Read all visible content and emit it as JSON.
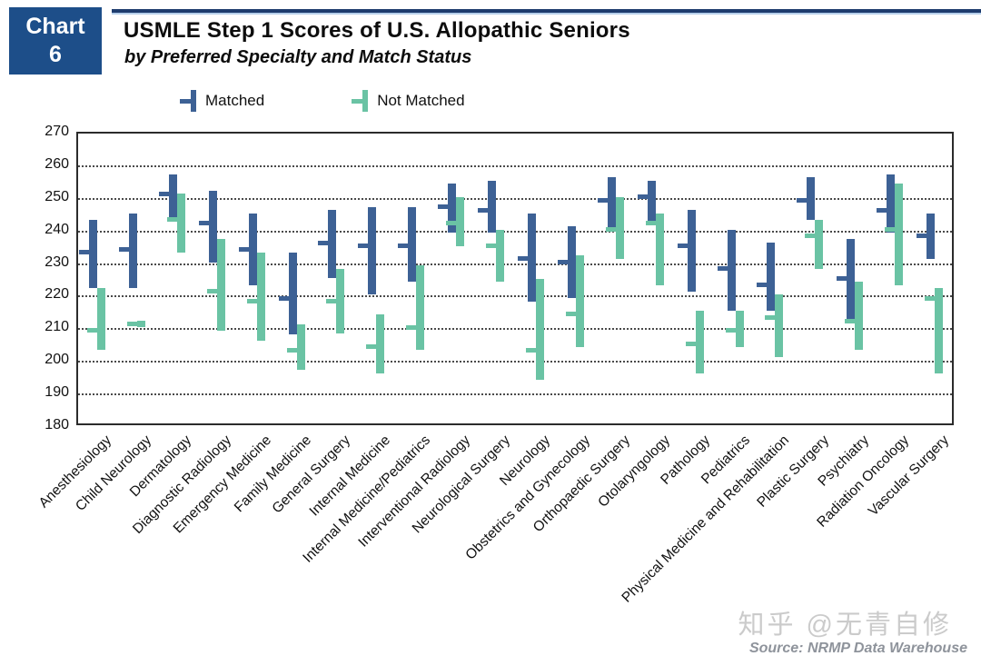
{
  "header": {
    "badge": {
      "line1": "Chart",
      "line2": "6"
    },
    "title": "USMLE Step 1 Scores of U.S. Allopathic Seniors",
    "subtitle": "by Preferred Specialty and Match Status"
  },
  "legend": {
    "items": [
      {
        "label": "Matched",
        "color": "#3D6195"
      },
      {
        "label": "Not Matched",
        "color": "#6AC3A4"
      }
    ]
  },
  "watermark": "知乎 @无青自修",
  "source": "Source: NRMP Data Warehouse",
  "colors": {
    "matched": "#3D6195",
    "not_matched": "#6AC3A4",
    "badge_bg": "#1D4E89",
    "rule_dark": "#1E3C6E",
    "rule_light": "#B5CFEA",
    "gridline": "#4a4a4a",
    "watermark": "#cbcbcb",
    "source_text": "#8E939B"
  },
  "chart_data": {
    "type": "bar",
    "subtype": "floating-range-bars-with-mean-tick",
    "title": "USMLE Step 1 Scores of U.S. Allopathic Seniors",
    "subtitle": "by Preferred Specialty and Match Status",
    "xlabel": "",
    "ylabel": "",
    "ylim": [
      180,
      270
    ],
    "yticks": [
      180,
      190,
      200,
      210,
      220,
      230,
      240,
      250,
      260,
      270
    ],
    "grid": "horizontal-dotted",
    "legend_position": "top",
    "categories": [
      "Anesthesiology",
      "Child Neurology",
      "Dermatology",
      "Diagnostic Radiology",
      "Emergency Medicine",
      "Family Medicine",
      "General Surgery",
      "Internal Medicine",
      "Internal Medicine/Pediatrics",
      "Interventional Radiology",
      "Neurological Surgery",
      "Neurology",
      "Obstetrics and Gynecology",
      "Orthopaedic Surgery",
      "Otolaryngology",
      "Pathology",
      "Pediatrics",
      "Physical Medicine and Rehabilitation",
      "Plastic Surgery",
      "Psychiatry",
      "Radiation Oncology",
      "Vascular Surgery"
    ],
    "series": [
      {
        "name": "Matched",
        "color": "#3D6195",
        "low": [
          222,
          222,
          243,
          230,
          223,
          208,
          225,
          220,
          224,
          239,
          239,
          218,
          219,
          240,
          242,
          221,
          215,
          215,
          243,
          212,
          239,
          231
        ],
        "mid": [
          233,
          234,
          251,
          242,
          234,
          219,
          236,
          235,
          235,
          247,
          246,
          231,
          230,
          249,
          250,
          235,
          228,
          223,
          249,
          225,
          246,
          238
        ],
        "high": [
          243,
          245,
          257,
          252,
          245,
          233,
          246,
          247,
          247,
          254,
          255,
          245,
          241,
          256,
          255,
          246,
          240,
          236,
          256,
          237,
          257,
          245
        ]
      },
      {
        "name": "Not Matched",
        "color": "#6AC3A4",
        "low": [
          203,
          210,
          233,
          209,
          206,
          197,
          208,
          196,
          203,
          235,
          224,
          194,
          204,
          231,
          223,
          196,
          204,
          201,
          228,
          203,
          223,
          196
        ],
        "mid": [
          209,
          211,
          243,
          221,
          218,
          203,
          218,
          204,
          210,
          242,
          235,
          203,
          214,
          240,
          242,
          205,
          209,
          213,
          238,
          212,
          240,
          219
        ],
        "high": [
          222,
          212,
          251,
          237,
          233,
          211,
          228,
          214,
          229,
          250,
          240,
          225,
          232,
          250,
          245,
          215,
          215,
          220,
          243,
          224,
          254,
          222
        ]
      }
    ]
  }
}
